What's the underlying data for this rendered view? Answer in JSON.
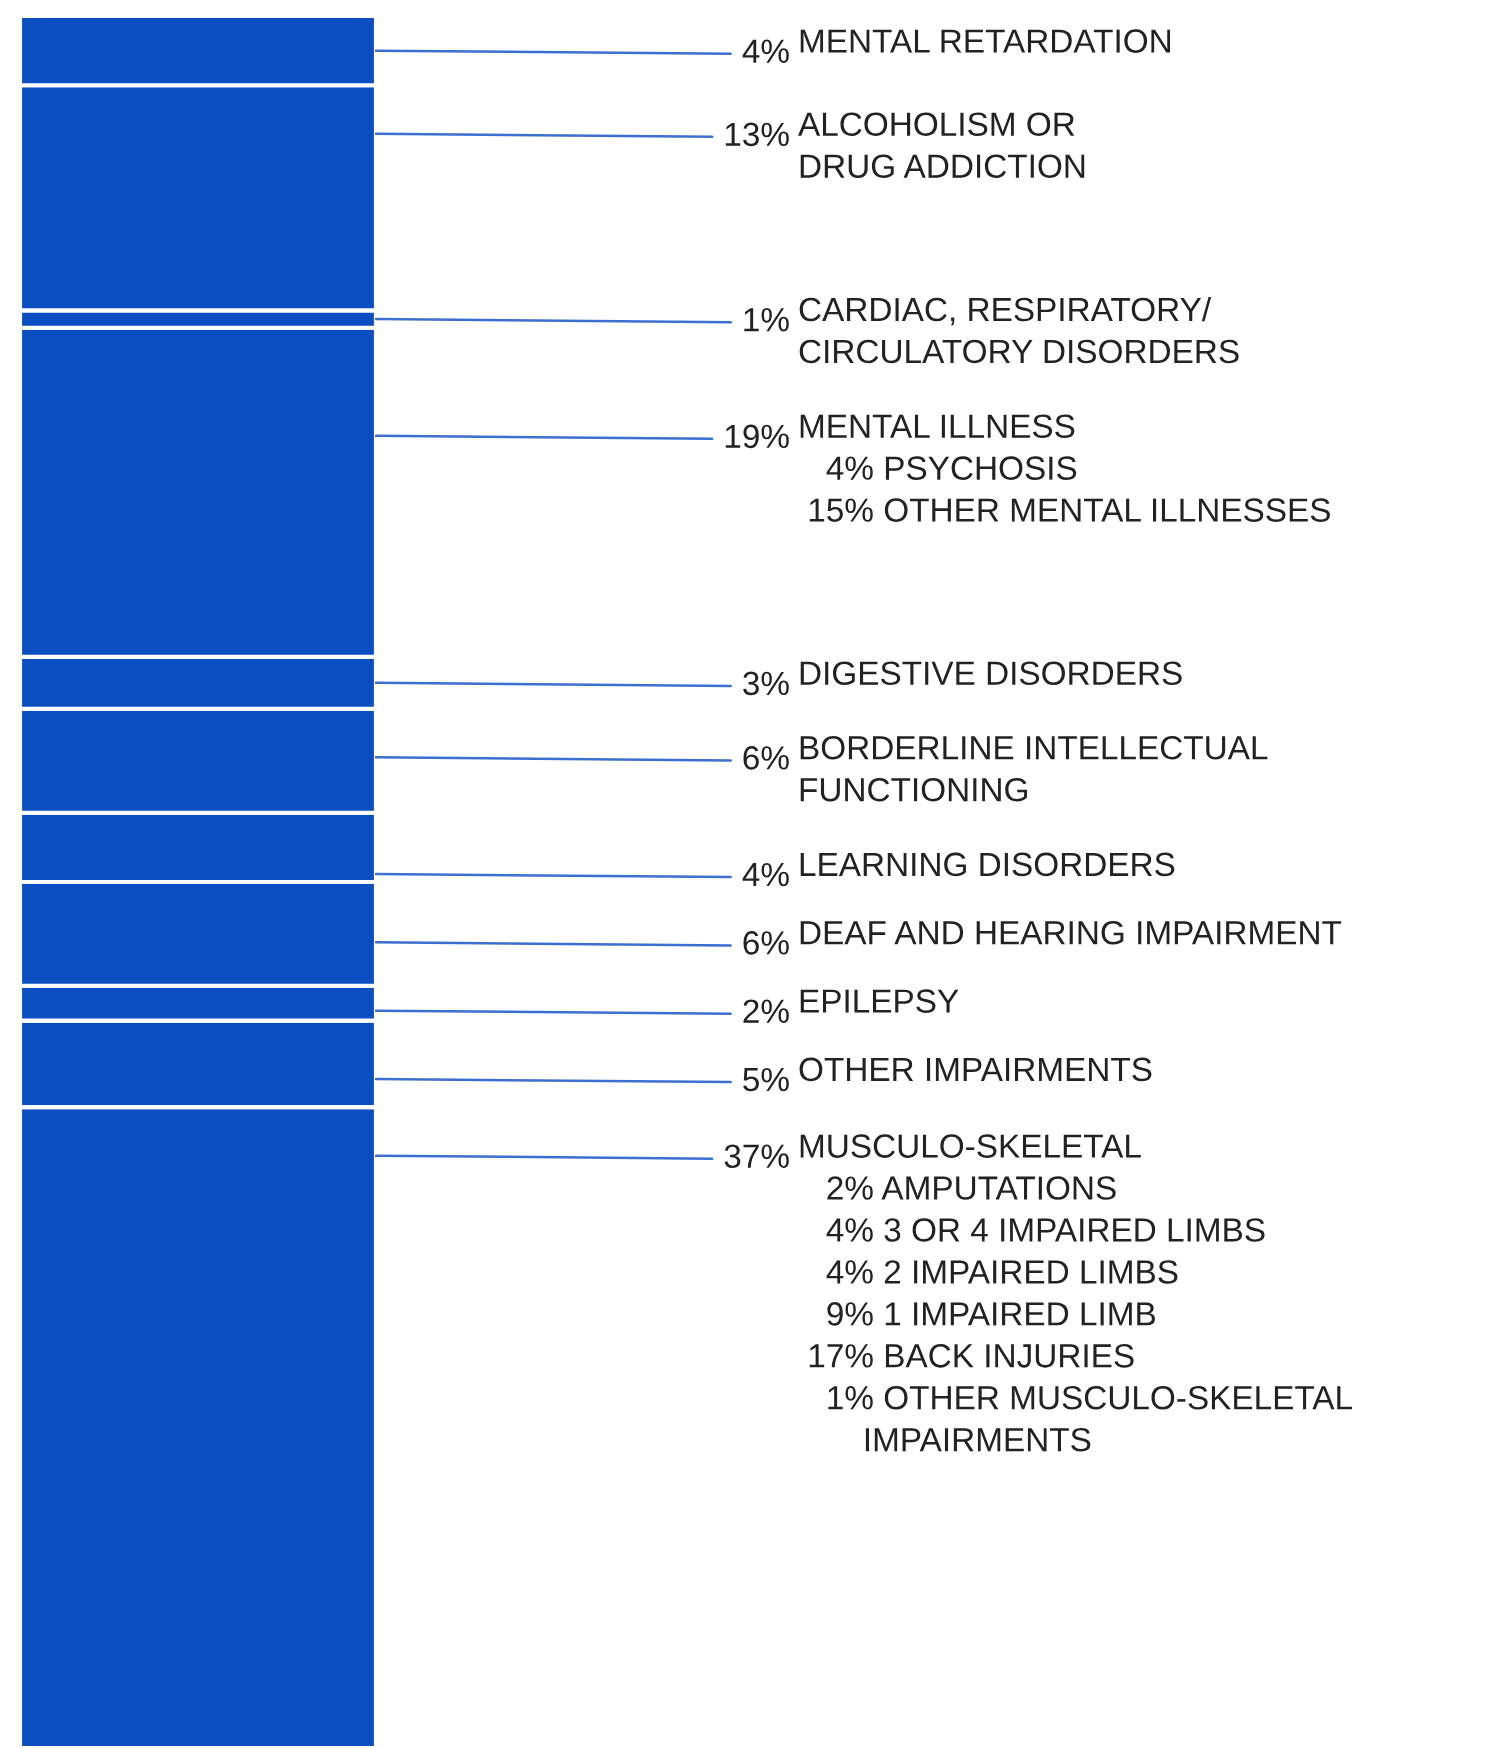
{
  "chart_data": {
    "type": "bar",
    "stacked": true,
    "categories": [
      null
    ],
    "tick_labels": false,
    "series": [
      {
        "name": "MUSCULO-SKELETAL\n   2% AMPUTATIONS\n   4% 3 OR 4 IMPAIRED LIMBS\n   4% 2 IMPAIRED LIMBS\n   9% 1 IMPAIRED LIMB\n 17% BACK INJURIES\n   1% OTHER MUSCULO-SKELETAL\n       IMPAIRMENTS",
        "color": "#0b4ec1",
        "values": [
          37
        ],
        "value_labels": [
          "37%"
        ]
      },
      {
        "name": "OTHER IMPAIRMENTS",
        "color": "#0b4ec1",
        "values": [
          5
        ],
        "value_labels": [
          "5%"
        ]
      },
      {
        "name": "EPILEPSY",
        "color": "#0b4ec1",
        "values": [
          2
        ],
        "value_labels": [
          "2%"
        ]
      },
      {
        "name": "DEAF AND HEARING IMPAIRMENT",
        "color": "#0b4ec1",
        "values": [
          6
        ],
        "value_labels": [
          "6%"
        ]
      },
      {
        "name": "LEARNING DISORDERS",
        "color": "#0b4ec1",
        "values": [
          4
        ],
        "value_labels": [
          "4%"
        ]
      },
      {
        "name": "BORDERLINE INTELLECTUAL\nFUNCTIONING",
        "color": "#0b4ec1",
        "values": [
          6
        ],
        "value_labels": [
          "6%"
        ]
      },
      {
        "name": "DIGESTIVE DISORDERS",
        "color": "#0b4ec1",
        "values": [
          3
        ],
        "value_labels": [
          "3%"
        ]
      },
      {
        "name": "MENTAL ILLNESS\n   4% PSYCHOSIS\n 15% OTHER MENTAL ILLNESSES",
        "color": "#0b4ec1",
        "values": [
          19
        ],
        "value_labels": [
          "19%"
        ]
      },
      {
        "name": "CARDIAC, RESPIRATORY/\nCIRCULATORY DISORDERS",
        "color": "#0b4ec1",
        "values": [
          1
        ],
        "value_labels": [
          "1%"
        ]
      },
      {
        "name": "ALCOHOLISM OR\nDRUG ADDICTION",
        "color": "#0b4ec1",
        "values": [
          13
        ],
        "value_labels": [
          "13%"
        ]
      },
      {
        "name": "MENTAL RETARDATION",
        "color": "#0b4ec1",
        "values": [
          4
        ],
        "value_labels": [
          "4%"
        ]
      }
    ]
  }
}
